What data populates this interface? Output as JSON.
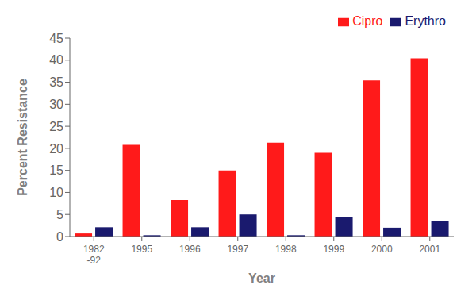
{
  "chart_data": {
    "type": "bar",
    "categories": [
      "1982\n-92",
      "1995",
      "1996",
      "1997",
      "1998",
      "1999",
      "2000",
      "2001"
    ],
    "series": [
      {
        "name": "Cipro",
        "color": "#FF1A1A",
        "values": [
          0.7,
          20.8,
          8.3,
          15.0,
          21.3,
          19.0,
          35.4,
          40.4
        ]
      },
      {
        "name": "Erythro",
        "color": "#1A1A6E",
        "values": [
          2.1,
          0.3,
          2.1,
          5.0,
          0.3,
          4.5,
          2.0,
          3.5
        ]
      }
    ],
    "xlabel": "Year",
    "ylabel": "Percent Resistance",
    "ylim": [
      0,
      45
    ],
    "yticks": [
      0,
      5,
      10,
      15,
      20,
      25,
      30,
      35,
      40,
      45
    ],
    "grid": false,
    "legend": "upper right"
  }
}
